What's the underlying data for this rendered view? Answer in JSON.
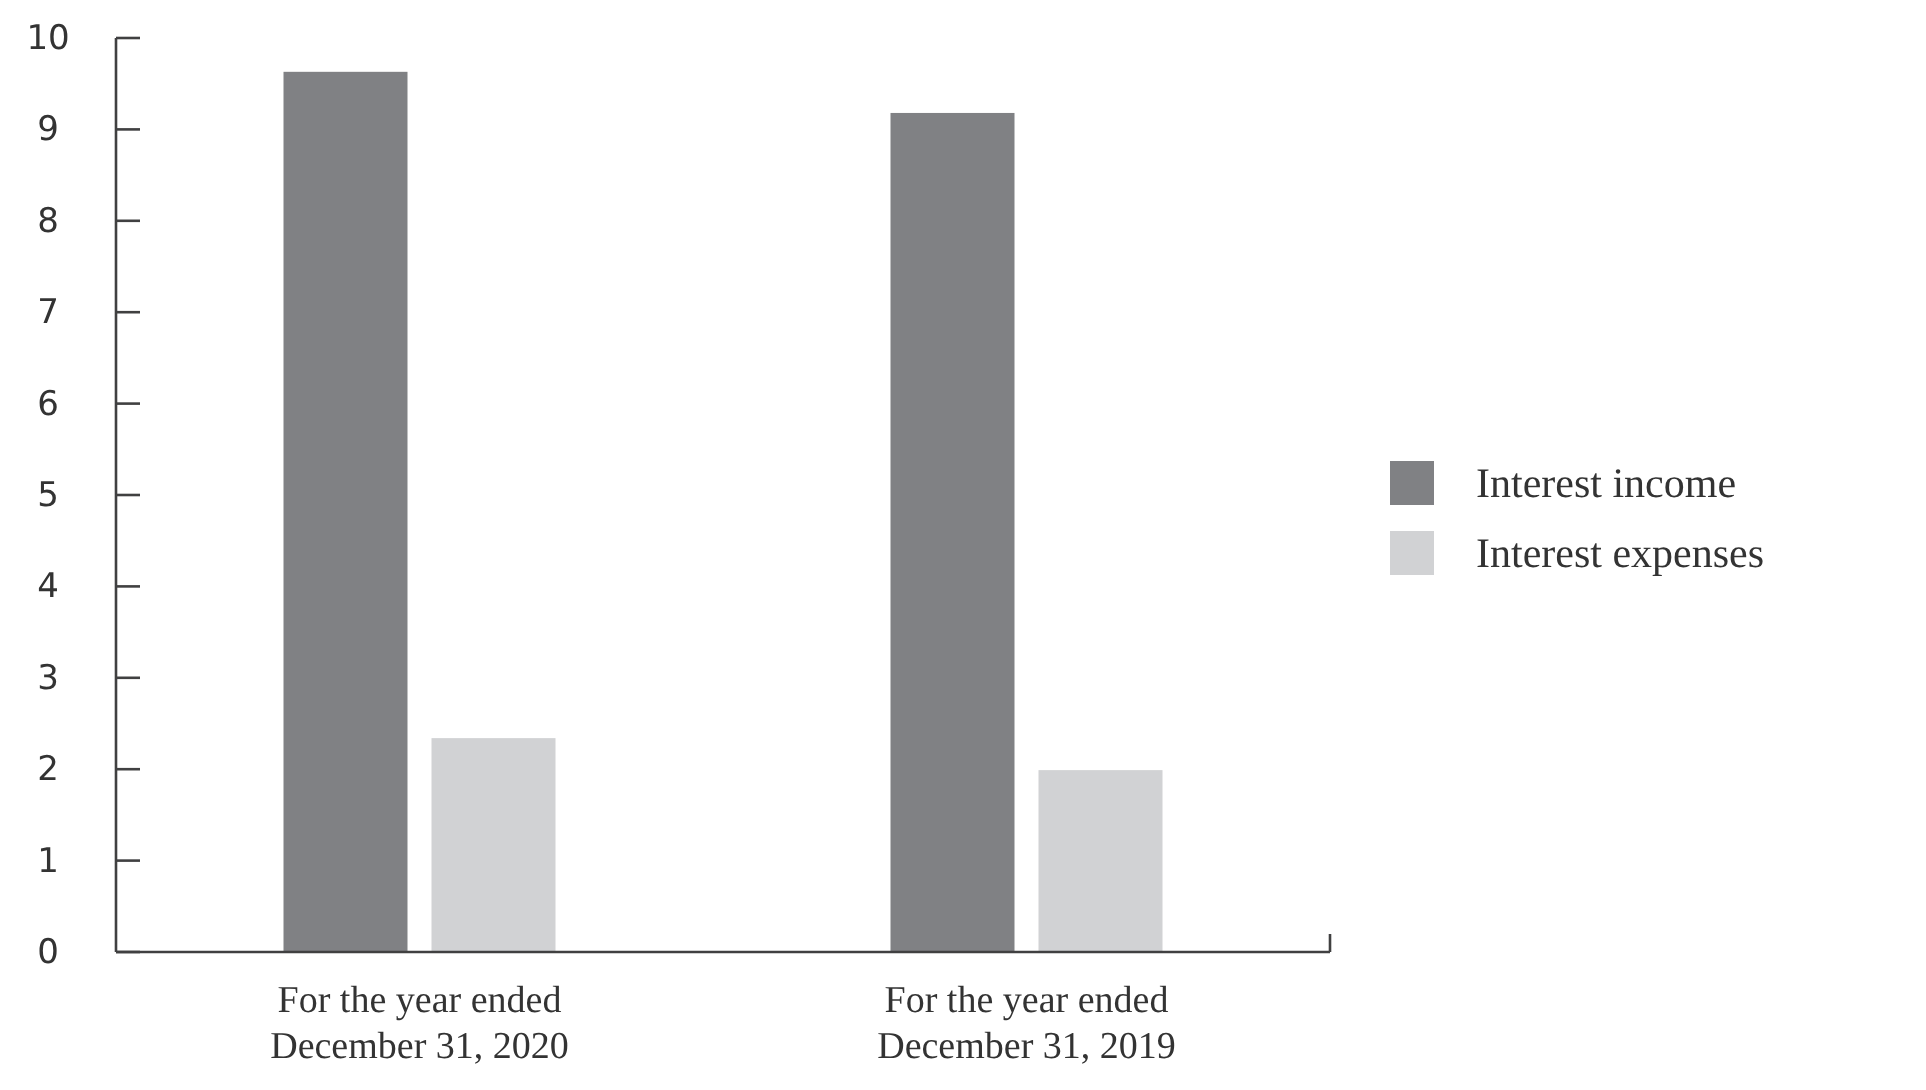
{
  "chart_data": {
    "type": "bar",
    "categories": [
      "For the year ended\nDecember 31, 2020",
      "For the year ended\nDecember 31, 2019"
    ],
    "series": [
      {
        "name": "Interest income",
        "color": "#808184",
        "values": [
          9.63,
          9.18
        ]
      },
      {
        "name": "Interest expenses",
        "color": "#d1d2d4",
        "values": [
          2.34,
          1.99
        ]
      }
    ],
    "ylim": [
      0,
      10
    ],
    "yticks": [
      0,
      1,
      2,
      3,
      4,
      5,
      6,
      7,
      8,
      9,
      10
    ],
    "grid": false,
    "legend": "right"
  }
}
